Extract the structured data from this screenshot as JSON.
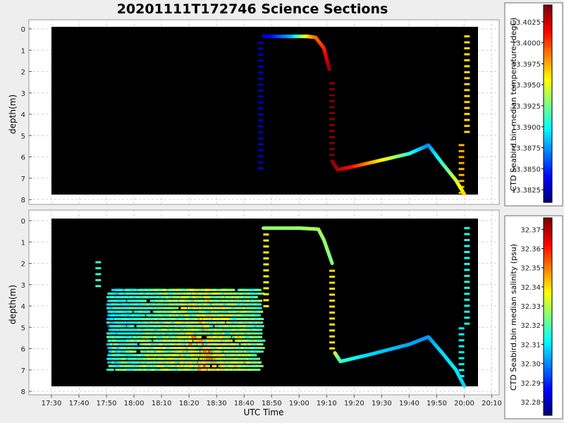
{
  "title": "20201111T172746 Science Sections",
  "colormap": [
    "#00007f",
    "#0000ff",
    "#007fff",
    "#00ffff",
    "#7fff7f",
    "#ffff00",
    "#ff7f00",
    "#ff0000",
    "#7f0000"
  ],
  "chart_data": [
    {
      "type": "heatmap",
      "name": "temperature-section",
      "ylabel": "depth(m)",
      "xlabel": "",
      "ylim": [
        0,
        8
      ],
      "y_reversed": true,
      "yticks": [
        0,
        1,
        2,
        3,
        4,
        5,
        6,
        7,
        8
      ],
      "colorbar": {
        "label": "CTD Seabird.bin median temperature (degC)",
        "range": [
          13.381,
          13.4045
        ],
        "ticks": [
          13.3825,
          13.385,
          13.3875,
          13.39,
          13.3925,
          13.395,
          13.3975,
          13.4,
          13.4025
        ],
        "tick_labels": [
          "13.3825",
          "13.3850",
          "13.3875",
          "13.3900",
          "13.3925",
          "13.3950",
          "13.3975",
          "13.4000",
          "13.4025"
        ]
      },
      "traces": [
        {
          "points": [
            [
              "18:47",
              0.35,
              13.3825
            ],
            [
              "18:58",
              0.35,
              13.3885
            ],
            [
              "19:03",
              0.35,
              13.396
            ],
            [
              "19:06",
              0.4,
              13.399
            ],
            [
              "19:09",
              0.9,
              13.4005
            ],
            [
              "19:11",
              1.9,
              13.404
            ]
          ]
        },
        {
          "points": [
            [
              "19:12",
              6.2,
              13.404
            ],
            [
              "19:14",
              6.6,
              13.4035
            ],
            [
              "19:20",
              6.45,
              13.401
            ],
            [
              "19:30",
              6.15,
              13.396
            ],
            [
              "19:40",
              5.85,
              13.391
            ],
            [
              "19:47",
              5.45,
              13.387
            ],
            [
              "19:52",
              6.3,
              13.391
            ],
            [
              "19:57",
              7.1,
              13.3945
            ],
            [
              "20:00",
              7.75,
              13.3965
            ]
          ]
        }
      ],
      "profiles": [
        {
          "time": "18:46",
          "depth_from": 0.6,
          "depth_to": 6.6,
          "value": 13.3825
        },
        {
          "time": "19:12",
          "depth_from": 2.5,
          "depth_to": 6.0,
          "value": 13.4045
        },
        {
          "time": "19:59",
          "depth_from": 5.4,
          "depth_to": 7.8,
          "value": 13.3975
        },
        {
          "time": "20:01",
          "depth_from": 0.3,
          "depth_to": 5.0,
          "value": 13.3965
        }
      ]
    },
    {
      "type": "heatmap",
      "name": "salinity-section",
      "ylabel": "depth(m)",
      "xlabel": "UTC Time",
      "xticks": [
        "17:30",
        "17:40",
        "17:50",
        "18:00",
        "18:10",
        "18:20",
        "18:30",
        "18:40",
        "18:50",
        "19:00",
        "19:10",
        "19:20",
        "19:30",
        "19:40",
        "19:50",
        "20:00",
        "20:10"
      ],
      "xlim": [
        "17:30",
        "20:05"
      ],
      "ylim": [
        0,
        8
      ],
      "y_reversed": true,
      "yticks": [
        0,
        1,
        2,
        3,
        4,
        5,
        6,
        7,
        8
      ],
      "colorbar": {
        "label": "CTD Seabird.bin median salinity (psu)",
        "range": [
          32.273,
          32.376
        ],
        "ticks": [
          32.28,
          32.29,
          32.3,
          32.31,
          32.32,
          32.33,
          32.34,
          32.35,
          32.36,
          32.37
        ],
        "tick_labels": [
          "32.28",
          "32.29",
          "32.30",
          "32.31",
          "32.32",
          "32.33",
          "32.34",
          "32.35",
          "32.36",
          "32.37"
        ]
      },
      "patch": {
        "t_from": "17:50",
        "t_to": "18:45",
        "depth_from": 3.2,
        "depth_to": 7.0,
        "value_range": [
          32.295,
          32.355
        ]
      },
      "traces": [
        {
          "points": [
            [
              "18:47",
              0.35,
              32.326
            ],
            [
              "19:00",
              0.35,
              32.327
            ],
            [
              "19:07",
              0.4,
              32.328
            ],
            [
              "19:09",
              0.9,
              32.327
            ],
            [
              "19:12",
              2.0,
              32.325
            ]
          ]
        },
        {
          "points": [
            [
              "19:13",
              6.2,
              32.335
            ],
            [
              "19:15",
              6.6,
              32.318
            ],
            [
              "19:25",
              6.3,
              32.308
            ],
            [
              "19:40",
              5.8,
              32.303
            ],
            [
              "19:47",
              5.45,
              32.301
            ],
            [
              "19:52",
              6.2,
              32.308
            ],
            [
              "19:57",
              7.0,
              32.31
            ],
            [
              "20:00",
              7.75,
              32.307
            ]
          ]
        }
      ],
      "profiles": [
        {
          "time": "17:47",
          "depth_from": 1.9,
          "depth_to": 3.3,
          "value": 32.318
        },
        {
          "time": "18:48",
          "depth_from": 0.6,
          "depth_to": 4.0,
          "value": 32.338
        },
        {
          "time": "19:12",
          "depth_from": 2.3,
          "depth_to": 6.0,
          "value": 32.34
        },
        {
          "time": "19:59",
          "depth_from": 5.0,
          "depth_to": 7.5,
          "value": 32.312
        },
        {
          "time": "20:01",
          "depth_from": 0.3,
          "depth_to": 5.0,
          "value": 32.314
        }
      ]
    }
  ]
}
